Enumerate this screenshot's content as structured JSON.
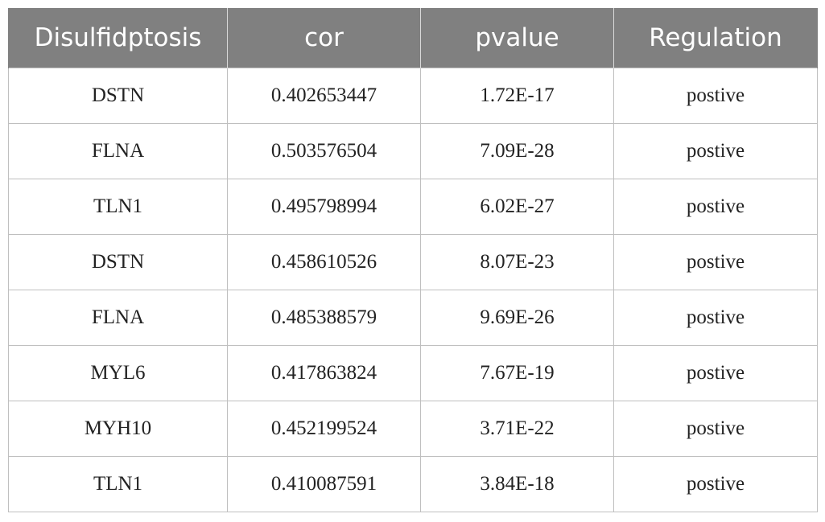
{
  "table": {
    "headers": [
      "Disulfidptosis",
      "cor",
      "pvalue",
      "Regulation"
    ],
    "rows": [
      [
        "DSTN",
        "0.402653447",
        "1.72E-17",
        "postive"
      ],
      [
        "FLNA",
        "0.503576504",
        "7.09E-28",
        "postive"
      ],
      [
        "TLN1",
        "0.495798994",
        "6.02E-27",
        "postive"
      ],
      [
        "DSTN",
        "0.458610526",
        "8.07E-23",
        "postive"
      ],
      [
        "FLNA",
        "0.485388579",
        "9.69E-26",
        "postive"
      ],
      [
        "MYL6",
        "0.417863824",
        "7.67E-19",
        "postive"
      ],
      [
        "MYH10",
        "0.452199524",
        "3.71E-22",
        "postive"
      ],
      [
        "TLN1",
        "0.410087591",
        "3.84E-18",
        "postive"
      ]
    ]
  },
  "colors": {
    "header_bg": "#808080",
    "header_text": "#ffffff",
    "grid": "#bfbfbf"
  }
}
